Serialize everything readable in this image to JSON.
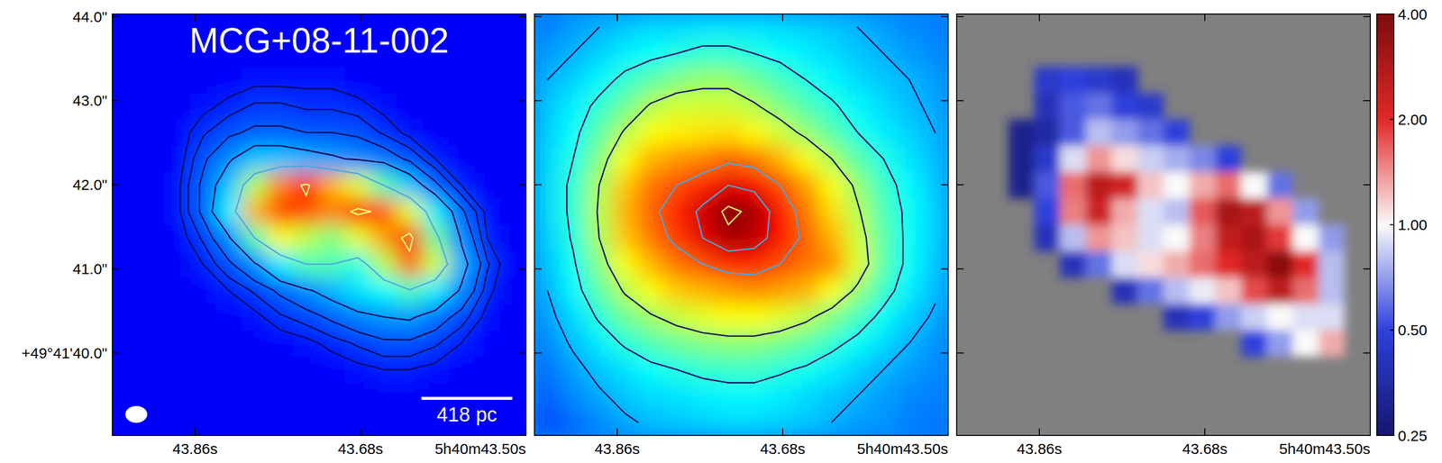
{
  "chart_data": {
    "type": "image",
    "title": "MCG+08-11-002",
    "xlim": [
      43.95,
      43.5
    ],
    "xticks": [
      {
        "value": 43.86,
        "label": "43.86s"
      },
      {
        "value": 43.68,
        "label": "43.68s"
      },
      {
        "value": 43.5,
        "label": "5h40m43.50s"
      }
    ],
    "ylim": [
      39.02,
      44.03
    ],
    "yticks": [
      {
        "value": 40,
        "label": "+49°41'40.0\""
      },
      {
        "value": 41,
        "label": "41.0\""
      },
      {
        "value": 42,
        "label": "42.0\""
      },
      {
        "value": 43,
        "label": "43.0\""
      },
      {
        "value": 44,
        "label": "44.0\""
      }
    ],
    "scale_bar": {
      "label": "418 pc",
      "length": 1.08
    },
    "beam": {
      "major": 0.26,
      "minor": 0.2
    },
    "panels": [
      {
        "type": "heatmap",
        "color": "jet",
        "zlim": [
          0,
          100
        ],
        "tick_labels": true,
        "contours": {
          "levels": [
            15,
            17.5,
            21,
            27,
            45,
            83
          ],
          "colors": [
            "#0a0a5a",
            "#0a0a5a",
            "#0a0a5a",
            "#0a0a5a",
            "#4aa8e0",
            "#ffff70"
          ]
        },
        "cells": [
          [
            12,
            12,
            12,
            12,
            12,
            12,
            12,
            12,
            12,
            12,
            12,
            12,
            12,
            12,
            12,
            12
          ],
          [
            12,
            12,
            12,
            12,
            12,
            12,
            12,
            12,
            12,
            12,
            12,
            12,
            12,
            12,
            12,
            12
          ],
          [
            12,
            12,
            12,
            12,
            13,
            14,
            14,
            14,
            14,
            13,
            12,
            12,
            12,
            12,
            12,
            12
          ],
          [
            12,
            12,
            12,
            14,
            16,
            18,
            18,
            17,
            17,
            16,
            14,
            12,
            12,
            12,
            12,
            12
          ],
          [
            12,
            12,
            13,
            17,
            20,
            22,
            22,
            21,
            21,
            20,
            17,
            14,
            12,
            12,
            12,
            12
          ],
          [
            12,
            12,
            13,
            20,
            26,
            32,
            32,
            30,
            28,
            26,
            24,
            20,
            15,
            12,
            12,
            12
          ],
          [
            12,
            12,
            14,
            22,
            32,
            55,
            75,
            85,
            70,
            60,
            45,
            32,
            22,
            15,
            12,
            12
          ],
          [
            12,
            12,
            14,
            22,
            36,
            70,
            82,
            80,
            75,
            86,
            80,
            60,
            36,
            22,
            14,
            12
          ],
          [
            12,
            12,
            13,
            18,
            26,
            45,
            62,
            56,
            50,
            60,
            72,
            88,
            48,
            26,
            15,
            12
          ],
          [
            12,
            12,
            12,
            15,
            20,
            26,
            36,
            45,
            45,
            40,
            55,
            78,
            58,
            30,
            18,
            12
          ],
          [
            12,
            12,
            12,
            13,
            15,
            18,
            22,
            26,
            30,
            35,
            38,
            44,
            36,
            26,
            16,
            12
          ],
          [
            12,
            12,
            12,
            12,
            13,
            14,
            17,
            19,
            22,
            25,
            27,
            28,
            24,
            19,
            14,
            12
          ],
          [
            12,
            12,
            12,
            12,
            12,
            12,
            13,
            14,
            16,
            18,
            20,
            20,
            18,
            15,
            13,
            12
          ],
          [
            12,
            12,
            12,
            12,
            12,
            12,
            12,
            12,
            13,
            14,
            15,
            15,
            14,
            13,
            12,
            12
          ],
          [
            12,
            12,
            12,
            12,
            12,
            12,
            12,
            12,
            12,
            12,
            12,
            12,
            12,
            12,
            12,
            12
          ],
          [
            12,
            12,
            12,
            12,
            12,
            12,
            12,
            12,
            12,
            12,
            12,
            12,
            12,
            12,
            12,
            12
          ]
        ]
      },
      {
        "type": "heatmap",
        "color": "jet",
        "zlim": [
          0,
          100
        ],
        "tick_labels": "x",
        "contours": {
          "levels": [
            30,
            40,
            54,
            80,
            90,
            98
          ],
          "colors": [
            "#0a0a5a",
            "#0a0a5a",
            "#0a0a5a",
            "#4aa8e0",
            "#4aa8e0",
            "#ffff70"
          ]
        },
        "cells": [
          [
            25,
            28,
            30,
            32,
            34,
            34,
            35,
            35,
            35,
            34,
            33,
            32,
            30,
            28,
            26,
            25
          ],
          [
            28,
            30,
            33,
            36,
            38,
            40,
            42,
            42,
            40,
            38,
            36,
            34,
            32,
            30,
            28,
            26
          ],
          [
            30,
            33,
            37,
            42,
            46,
            50,
            52,
            52,
            48,
            44,
            40,
            37,
            34,
            32,
            30,
            28
          ],
          [
            32,
            36,
            42,
            48,
            55,
            58,
            58,
            58,
            55,
            50,
            45,
            41,
            37,
            34,
            31,
            29
          ],
          [
            33,
            38,
            46,
            55,
            62,
            64,
            65,
            66,
            63,
            58,
            52,
            46,
            40,
            36,
            33,
            30
          ],
          [
            34,
            40,
            50,
            62,
            70,
            73,
            75,
            78,
            76,
            70,
            62,
            54,
            46,
            40,
            35,
            31
          ],
          [
            34,
            42,
            54,
            68,
            76,
            80,
            84,
            90,
            88,
            80,
            72,
            62,
            52,
            43,
            37,
            32
          ],
          [
            34,
            42,
            55,
            70,
            78,
            84,
            92,
            100,
            96,
            86,
            76,
            66,
            55,
            45,
            38,
            33
          ],
          [
            33,
            41,
            54,
            68,
            76,
            82,
            90,
            96,
            94,
            86,
            78,
            70,
            58,
            46,
            38,
            33
          ],
          [
            32,
            39,
            50,
            62,
            70,
            76,
            80,
            84,
            84,
            80,
            76,
            74,
            60,
            46,
            38,
            32
          ],
          [
            30,
            37,
            46,
            55,
            62,
            68,
            70,
            72,
            74,
            72,
            70,
            62,
            52,
            43,
            36,
            31
          ],
          [
            28,
            34,
            41,
            48,
            53,
            57,
            60,
            62,
            62,
            60,
            56,
            50,
            44,
            38,
            33,
            29
          ],
          [
            26,
            31,
            36,
            41,
            45,
            48,
            50,
            51,
            51,
            49,
            46,
            42,
            38,
            34,
            30,
            27
          ],
          [
            24,
            28,
            32,
            35,
            38,
            40,
            42,
            43,
            43,
            41,
            39,
            36,
            33,
            30,
            28,
            26
          ],
          [
            22,
            26,
            29,
            32,
            34,
            35,
            36,
            37,
            37,
            36,
            34,
            32,
            30,
            28,
            26,
            25
          ],
          [
            20,
            23,
            26,
            29,
            31,
            32,
            33,
            34,
            34,
            33,
            32,
            30,
            28,
            27,
            25,
            24
          ]
        ]
      },
      {
        "type": "heatmap",
        "color": "bwr",
        "log": true,
        "zlim": [
          0.25,
          4
        ],
        "tick_labels": "x",
        "colorbar": {
          "range": [
            0.25,
            4
          ],
          "ticks": [
            {
              "value": 0.25,
              "label": "0.25"
            },
            {
              "value": 0.5,
              "label": "0.50"
            },
            {
              "value": 1,
              "label": "1.00"
            },
            {
              "value": 2,
              "label": "2.00"
            },
            {
              "value": 4,
              "label": "4.00"
            }
          ]
        },
        "cells": [
          [
            null,
            null,
            null,
            null,
            null,
            null,
            null,
            null,
            null,
            null,
            null,
            null,
            null,
            null,
            null,
            null
          ],
          [
            null,
            null,
            null,
            null,
            null,
            null,
            null,
            null,
            null,
            null,
            null,
            null,
            null,
            null,
            null,
            null
          ],
          [
            null,
            null,
            null,
            0.45,
            0.5,
            0.45,
            0.4,
            null,
            null,
            null,
            null,
            null,
            null,
            null,
            null,
            null
          ],
          [
            null,
            null,
            null,
            0.4,
            0.55,
            0.6,
            0.5,
            0.45,
            null,
            null,
            null,
            null,
            null,
            null,
            null,
            null
          ],
          [
            null,
            null,
            0.3,
            0.35,
            0.55,
            0.8,
            0.7,
            0.6,
            0.5,
            null,
            null,
            null,
            null,
            null,
            null,
            null
          ],
          [
            null,
            null,
            0.3,
            0.45,
            0.9,
            1.4,
            1.1,
            0.85,
            0.75,
            0.65,
            0.5,
            null,
            null,
            null,
            null,
            null
          ],
          [
            null,
            null,
            0.3,
            0.55,
            1.6,
            2.6,
            2.2,
            1.2,
            1.0,
            1.3,
            1.6,
            1.0,
            0.6,
            null,
            null,
            null
          ],
          [
            null,
            null,
            null,
            0.5,
            1.5,
            2.3,
            1.3,
            0.9,
            0.8,
            1.7,
            3.0,
            2.6,
            1.4,
            0.7,
            null,
            null
          ],
          [
            null,
            null,
            null,
            0.4,
            0.8,
            1.4,
            1.2,
            0.9,
            1.0,
            1.5,
            2.5,
            2.9,
            1.9,
            1.0,
            0.7,
            null
          ],
          [
            null,
            null,
            null,
            null,
            0.4,
            0.6,
            0.9,
            1.1,
            1.3,
            1.6,
            2.0,
            2.6,
            3.6,
            2.0,
            0.8,
            null
          ],
          [
            null,
            null,
            null,
            null,
            null,
            null,
            0.4,
            0.6,
            0.8,
            0.95,
            1.2,
            1.8,
            2.6,
            1.6,
            0.8,
            null
          ],
          [
            null,
            null,
            null,
            null,
            null,
            null,
            null,
            null,
            0.4,
            0.5,
            0.7,
            0.85,
            1.0,
            0.9,
            0.9,
            null
          ],
          [
            null,
            null,
            null,
            null,
            null,
            null,
            null,
            null,
            null,
            null,
            null,
            0.5,
            0.7,
            1.0,
            1.3,
            null
          ],
          [
            null,
            null,
            null,
            null,
            null,
            null,
            null,
            null,
            null,
            null,
            null,
            null,
            null,
            null,
            null,
            null
          ],
          [
            null,
            null,
            null,
            null,
            null,
            null,
            null,
            null,
            null,
            null,
            null,
            null,
            null,
            null,
            null,
            null
          ],
          [
            null,
            null,
            null,
            null,
            null,
            null,
            null,
            null,
            null,
            null,
            null,
            null,
            null,
            null,
            null,
            null
          ]
        ]
      }
    ]
  }
}
